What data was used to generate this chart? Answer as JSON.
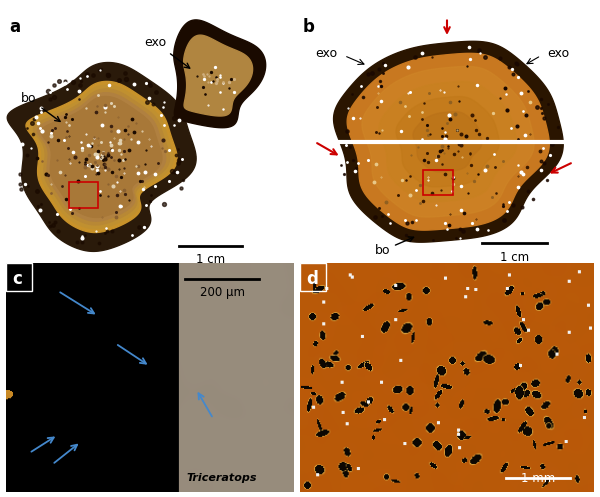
{
  "fig_width": 6.0,
  "fig_height": 4.97,
  "dpi": 100,
  "bg_color": "#ffffff",
  "panel_labels": [
    "a",
    "b",
    "c",
    "d"
  ],
  "panel_label_fontsize": 12,
  "panel_label_fontweight": "bold",
  "annotation_fontsize": 9,
  "scalebar_fontsize": 8.5,
  "italic_fontsize": 8,
  "panel_a": {
    "label": "a",
    "exo_text": "exo",
    "bo_text": "bo",
    "scalebar_text": "1 cm",
    "bg_color": "#f5f5f5"
  },
  "panel_b": {
    "label": "b",
    "exo_left": "exo",
    "exo_right": "exo",
    "bo_text": "bo",
    "scalebar_text": "1 cm",
    "bg_color": "#f5f5f5"
  },
  "panel_c": {
    "label": "c",
    "scalebar_text": "200 μm",
    "italic_text": "Triceratops",
    "bg_color": "#000000"
  },
  "panel_d": {
    "label": "d",
    "scalebar_text": "1 mm",
    "bg_color": "#8b4513"
  },
  "arrow_color_red": "#cc0000",
  "arrow_color_black": "#000000",
  "arrow_color_blue": "#4488cc",
  "scalebar_color": "#000000",
  "scalebar_color_white": "#ffffff"
}
